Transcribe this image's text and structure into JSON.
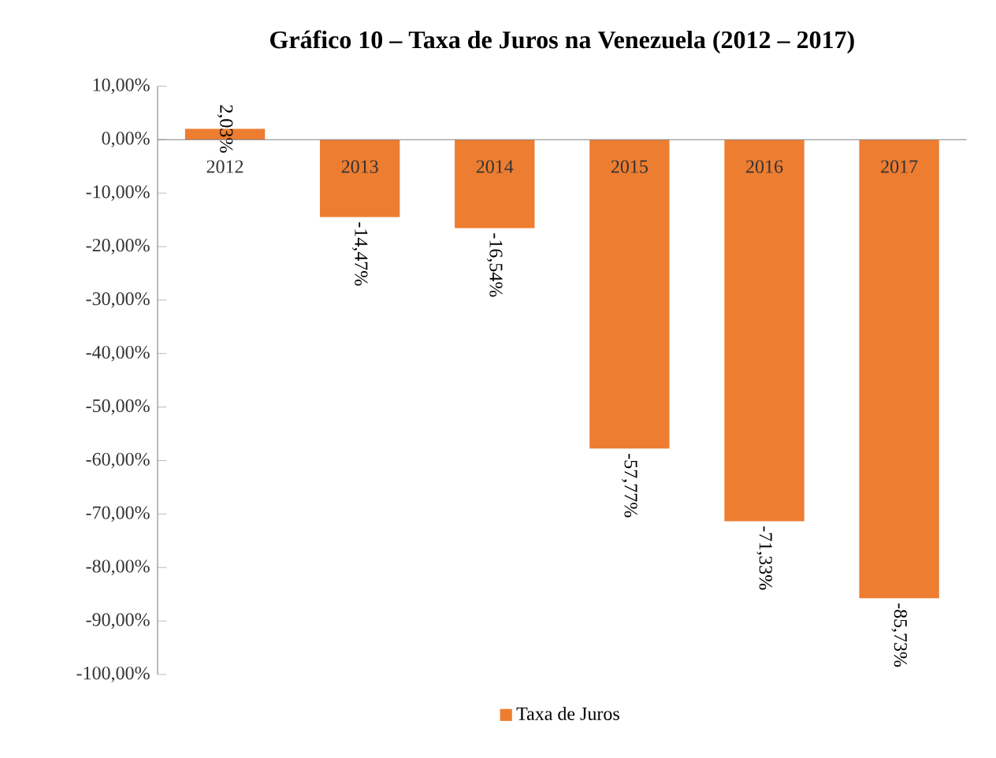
{
  "chart_data": {
    "type": "bar",
    "title": "Gráfico 10 – Taxa de Juros na Venezuela (2012 – 2017)",
    "categories": [
      "2012",
      "2013",
      "2014",
      "2015",
      "2016",
      "2017"
    ],
    "series": [
      {
        "name": "Taxa de Juros",
        "color": "#ed7d31",
        "values": [
          2.03,
          -14.47,
          -16.54,
          -57.77,
          -71.33,
          -85.73
        ],
        "value_labels": [
          "2,03%",
          "-14,47%",
          "-16,54%",
          "-57,77%",
          "-71,33%",
          "-85,73%"
        ]
      }
    ],
    "ylim": [
      -100,
      10
    ],
    "yticks": [
      {
        "value": 10,
        "label": "10,00%"
      },
      {
        "value": 0,
        "label": "0,00%"
      },
      {
        "value": -10,
        "label": "-10,00%"
      },
      {
        "value": -20,
        "label": "-20,00%"
      },
      {
        "value": -30,
        "label": "-30,00%"
      },
      {
        "value": -40,
        "label": "-40,00%"
      },
      {
        "value": -50,
        "label": "-50,00%"
      },
      {
        "value": -60,
        "label": "-60,00%"
      },
      {
        "value": -70,
        "label": "-70,00%"
      },
      {
        "value": -80,
        "label": "-80,00%"
      },
      {
        "value": -90,
        "label": "-90,00%"
      },
      {
        "value": -100,
        "label": "-100,00%"
      }
    ],
    "grid": false,
    "legend": "bottom"
  }
}
